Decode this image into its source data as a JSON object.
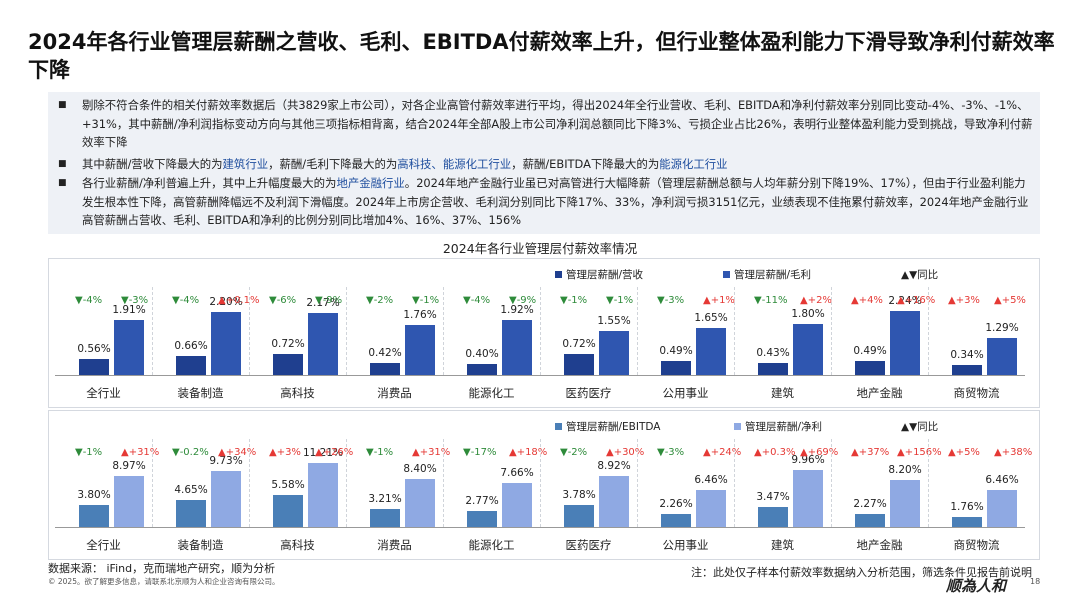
{
  "title": "2024年各行业管理层薪酬之营收、毛利、EBITDA付薪效率上升，但行业整体盈利能力下滑导致净利付薪效率下降",
  "bullets": [
    {
      "parts": [
        {
          "t": "剔除不符合条件的相关付薪效率数据后（共3829家上市公司），对各企业高管付薪效率进行平均，得出2024年全行业营收、毛利、EBITDA和净利付薪效率分别同比变动-4%、-3%、-1%、+31%，其中薪酬/净利润指标变动方向与其他三项指标相背离，结合2024年全部A股上市公司净利润总额同比下降3%、亏损企业占比26%，表明行业整体盈利能力受到挑战，导致净利付薪效率下降",
          "h": false
        }
      ]
    },
    {
      "parts": [
        {
          "t": "其中薪酬/营收下降最大的为",
          "h": false
        },
        {
          "t": "建筑行业",
          "h": true
        },
        {
          "t": "，薪酬/毛利下降最大的为",
          "h": false
        },
        {
          "t": "高科技、能源化工行业",
          "h": true
        },
        {
          "t": "，薪酬/EBITDA下降最大的为",
          "h": false
        },
        {
          "t": "能源化工行业",
          "h": true
        }
      ]
    },
    {
      "parts": [
        {
          "t": "各行业薪酬/净利普遍上升，其中上升幅度最大的为",
          "h": false
        },
        {
          "t": "地产金融行业",
          "h": true
        },
        {
          "t": "。2024年地产金融行业虽已对高管进行大幅降薪（管理层薪酬总额与人均年薪分别下降19%、17%），但由于行业盈利能力发生根本性下降，高管薪酬降幅远不及利润下滑幅度。2024年上市房企营收、毛利润分别同比下降17%、33%，净利润亏损3151亿元，业绩表现不佳拖累付薪效率，2024年地产金融行业高管薪酬占营收、毛利、EBITDA和净利的比例分别同比增加4%、16%、37%、156%",
          "h": false
        }
      ]
    }
  ],
  "chart_section_title": "2024年各行业管理层付薪效率情况",
  "legend_yoy": "▲▼同比",
  "colors": {
    "s1": "#1f3f8f",
    "s2": "#2f56b0",
    "s3": "#4a7fb7",
    "s4": "#8fa9e3",
    "up": "#e53935",
    "down": "#2e8b3a"
  },
  "chart_data": [
    {
      "type": "bar",
      "categories": [
        "全行业",
        "装备制造",
        "高科技",
        "消费品",
        "能源化工",
        "医药医疗",
        "公用事业",
        "建筑",
        "地产金融",
        "商贸物流"
      ],
      "series": [
        {
          "name": "管理层薪酬/营收",
          "values": [
            0.56,
            0.66,
            0.72,
            0.42,
            0.4,
            0.72,
            0.49,
            0.43,
            0.49,
            0.34
          ],
          "labels": [
            "0.56%",
            "0.66%",
            "0.72%",
            "0.42%",
            "0.40%",
            "0.72%",
            "0.49%",
            "0.43%",
            "0.49%",
            "0.34%"
          ],
          "yoy": [
            "▼-4%",
            "▼-4%",
            "▼-6%",
            "▼-2%",
            "▼-4%",
            "▼-1%",
            "▼-3%",
            "▼-11%",
            "▲+4%",
            "▲+3%"
          ]
        },
        {
          "name": "管理层薪酬/毛利",
          "values": [
            1.91,
            2.2,
            2.17,
            1.76,
            1.92,
            1.55,
            1.65,
            1.8,
            2.24,
            1.29
          ],
          "labels": [
            "1.91%",
            "2.20%",
            "2.17%",
            "1.76%",
            "1.92%",
            "1.55%",
            "1.65%",
            "1.80%",
            "2.24%",
            "1.29%"
          ],
          "yoy": [
            "▼-3%",
            "▲+0.1%",
            "▼-9%",
            "▼-1%",
            "▼-9%",
            "▼-1%",
            "▲+1%",
            "▲+2%",
            "▲+16%",
            "▲+5%"
          ]
        }
      ]
    },
    {
      "type": "bar",
      "categories": [
        "全行业",
        "装备制造",
        "高科技",
        "消费品",
        "能源化工",
        "医药医疗",
        "公用事业",
        "建筑",
        "地产金融",
        "商贸物流"
      ],
      "series": [
        {
          "name": "管理层薪酬/EBITDA",
          "values": [
            3.8,
            4.65,
            5.58,
            3.21,
            2.77,
            3.78,
            2.26,
            3.47,
            2.27,
            1.76
          ],
          "labels": [
            "3.80%",
            "4.65%",
            "5.58%",
            "3.21%",
            "2.77%",
            "3.78%",
            "2.26%",
            "3.47%",
            "2.27%",
            "1.76%"
          ],
          "yoy": [
            "▼-1%",
            "▼-0.2%",
            "▲+3%",
            "▼-1%",
            "▼-17%",
            "▼-2%",
            "▼-3%",
            "▲+0.3%",
            "▲+37%",
            "▲+5%"
          ]
        },
        {
          "name": "管理层薪酬/净利",
          "values": [
            8.97,
            9.73,
            11.21,
            8.4,
            7.66,
            8.92,
            6.46,
            9.96,
            8.2,
            6.46
          ],
          "labels": [
            "8.97%",
            "9.73%",
            "11.21%",
            "8.40%",
            "7.66%",
            "8.92%",
            "6.46%",
            "9.96%",
            "8.20%",
            "6.46%"
          ],
          "yoy": [
            "▲+31%",
            "▲+34%",
            "▲+26%",
            "▲+31%",
            "▲+18%",
            "▲+30%",
            "▲+24%",
            "▲+69%",
            "▲+156%",
            "▲+38%"
          ]
        }
      ]
    }
  ],
  "footer": {
    "source": "数据来源： iFind，克而瑞地产研究，顺为分析",
    "copyright": "© 2025。欲了解更多信息，请联系北京顺为人和企业咨询有限公司。",
    "note": "注：此处仅子样本付薪效率数据纳入分析范围，筛选条件见报告前说明",
    "logo": "顺為人和",
    "page": "18"
  }
}
